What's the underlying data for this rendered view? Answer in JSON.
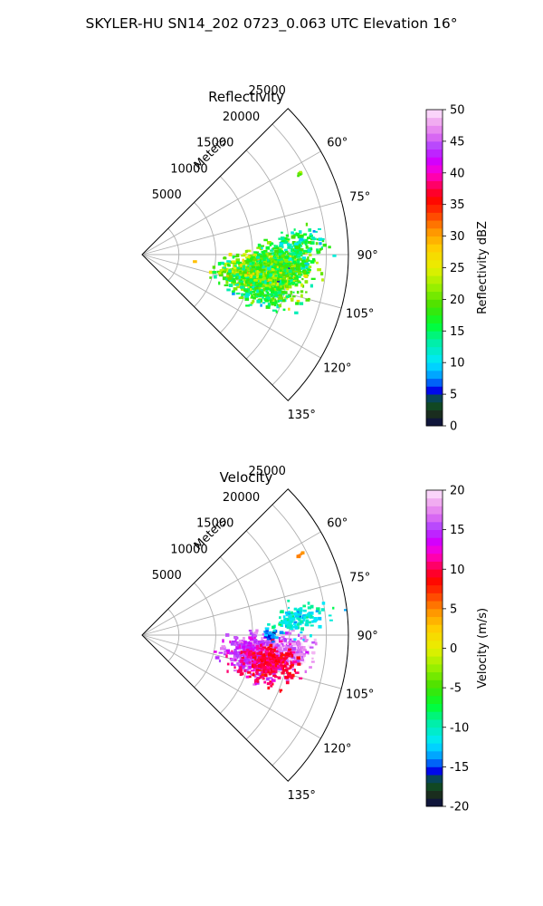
{
  "figure": {
    "suptitle": "SKYLER-HU  SN14_202  0723_0.063 UTC Elevation 16°"
  },
  "chart_data": [
    {
      "type": "heatmap",
      "subtype": "polar-sector",
      "title": "Reflectivity",
      "radial_label": "Meters",
      "radial_ticks": [
        "5000",
        "10000",
        "15000",
        "20000",
        "25000"
      ],
      "radial_tick_values": [
        5000,
        10000,
        15000,
        20000,
        25000
      ],
      "rmax": 28000,
      "theta_range_deg": [
        45,
        135
      ],
      "angle_ticks": [
        "60°",
        "75°",
        "90°",
        "105°",
        "120°",
        "135°"
      ],
      "angle_tick_values": [
        60,
        75,
        90,
        105,
        120,
        135
      ],
      "grid": true,
      "colorbar": {
        "label": "Reflectivity dBZ",
        "min": 0,
        "max": 50,
        "ticks": [
          "0",
          "5",
          "10",
          "15",
          "20",
          "25",
          "30",
          "35",
          "40",
          "45",
          "50"
        ],
        "tick_values": [
          0,
          5,
          10,
          15,
          20,
          25,
          30,
          35,
          40,
          45,
          50
        ]
      },
      "echo_regions": [
        {
          "az_deg": 100,
          "range_m": 16500,
          "az_spread_deg": 8,
          "range_spread_m": 4000,
          "value": 20,
          "spread": 4,
          "count": 900
        },
        {
          "az_deg": 94,
          "range_m": 19500,
          "az_spread_deg": 5,
          "range_spread_m": 3000,
          "value": 18,
          "spread": 4,
          "count": 500
        },
        {
          "az_deg": 86,
          "range_m": 21000,
          "az_spread_deg": 4,
          "range_spread_m": 3000,
          "value": 15,
          "spread": 3,
          "count": 140
        },
        {
          "az_deg": 108,
          "range_m": 17000,
          "az_spread_deg": 5,
          "range_spread_m": 3500,
          "value": 16,
          "spread": 3,
          "count": 160
        },
        {
          "az_deg": 63,
          "range_m": 24000,
          "az_spread_deg": 0.5,
          "range_spread_m": 300,
          "value": 20,
          "spread": 2,
          "count": 6
        }
      ]
    },
    {
      "type": "heatmap",
      "subtype": "polar-sector",
      "title": "Velocity",
      "radial_label": "Meters",
      "radial_ticks": [
        "5000",
        "10000",
        "15000",
        "20000",
        "25000"
      ],
      "radial_tick_values": [
        5000,
        10000,
        15000,
        20000,
        25000
      ],
      "rmax": 28000,
      "theta_range_deg": [
        45,
        135
      ],
      "angle_ticks": [
        "60°",
        "75°",
        "90°",
        "105°",
        "120°",
        "135°"
      ],
      "angle_tick_values": [
        60,
        75,
        90,
        105,
        120,
        135
      ],
      "grid": true,
      "colorbar": {
        "label": "Velocity (m/s)",
        "min": -20,
        "max": 20,
        "ticks": [
          "-20",
          "-15",
          "-10",
          "-5",
          "0",
          "5",
          "10",
          "15",
          "20"
        ],
        "tick_values": [
          -20,
          -15,
          -10,
          -5,
          0,
          5,
          10,
          15,
          20
        ]
      },
      "echo_regions": [
        {
          "az_deg": 100,
          "range_m": 16000,
          "az_spread_deg": 7,
          "range_spread_m": 3000,
          "value": 15,
          "spread": 1.5,
          "count": 700
        },
        {
          "az_deg": 96,
          "range_m": 20000,
          "az_spread_deg": 4,
          "range_spread_m": 2500,
          "value": 17,
          "spread": 1.5,
          "count": 350
        },
        {
          "az_deg": 101,
          "range_m": 18000,
          "az_spread_deg": 5,
          "range_spread_m": 3000,
          "value": 10,
          "spread": 1,
          "count": 250
        },
        {
          "az_deg": 84,
          "range_m": 21000,
          "az_spread_deg": 4,
          "range_spread_m": 3000,
          "value": -11,
          "spread": 1.5,
          "count": 150
        },
        {
          "az_deg": 90,
          "range_m": 17500,
          "az_spread_deg": 1.5,
          "range_spread_m": 700,
          "value": -14,
          "spread": 1,
          "count": 40
        },
        {
          "az_deg": 109,
          "range_m": 17000,
          "az_spread_deg": 4,
          "range_spread_m": 3000,
          "value": 10,
          "spread": 1,
          "count": 60
        },
        {
          "az_deg": 63,
          "range_m": 24000,
          "az_spread_deg": 0.5,
          "range_spread_m": 300,
          "value": 5,
          "spread": 0.5,
          "count": 6
        }
      ]
    }
  ]
}
